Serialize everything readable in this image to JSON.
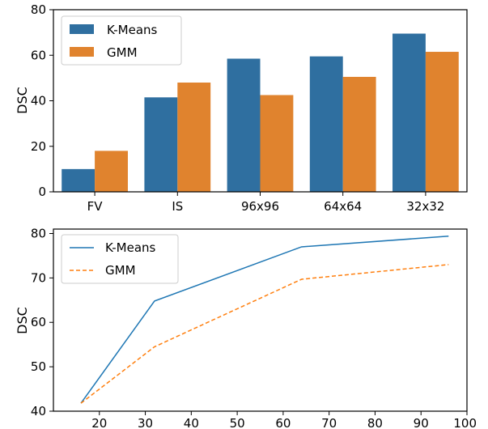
{
  "chart_data": [
    {
      "type": "bar",
      "categories": [
        "FV",
        "IS",
        "96x96",
        "64x64",
        "32x32"
      ],
      "series": [
        {
          "name": "K-Means",
          "values": [
            10,
            41.5,
            58.5,
            59.5,
            69.5
          ],
          "color": "#2f6fa0"
        },
        {
          "name": "GMM",
          "values": [
            18,
            48,
            42.5,
            50.5,
            61.5
          ],
          "color": "#e0832e"
        }
      ],
      "xlabel": "",
      "ylabel": "DSC",
      "ylim": [
        0,
        80
      ],
      "yticks": [
        0,
        20,
        40,
        60,
        80
      ],
      "legend": "top-left",
      "grid": false
    },
    {
      "type": "line",
      "series": [
        {
          "name": "K-Means",
          "x": [
            16,
            32,
            64,
            96
          ],
          "y": [
            41.8,
            64.8,
            77,
            79.4
          ],
          "color": "#1f77b4",
          "style": "solid"
        },
        {
          "name": "GMM",
          "x": [
            16,
            32,
            64,
            96
          ],
          "y": [
            41.8,
            54.5,
            69.7,
            73
          ],
          "color": "#ff7f0e",
          "style": "dashed"
        }
      ],
      "xlabel": "",
      "ylabel": "DSC",
      "xlim": [
        10,
        100
      ],
      "ylim": [
        40,
        81
      ],
      "xticks": [
        20,
        30,
        40,
        50,
        60,
        70,
        80,
        90,
        100
      ],
      "yticks": [
        40,
        50,
        60,
        70,
        80
      ],
      "legend": "top-left",
      "grid": false
    }
  ]
}
